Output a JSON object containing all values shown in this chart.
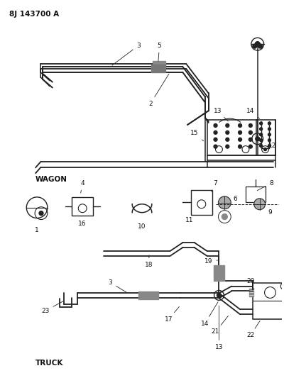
{
  "title": "8J 143700 A",
  "bg_color": "#ffffff",
  "line_color": "#222222",
  "text_color": "#111111",
  "wagon_label": "WAGON",
  "truck_label": "TRUCK",
  "figsize": [
    4.0,
    5.33
  ],
  "dpi": 100
}
